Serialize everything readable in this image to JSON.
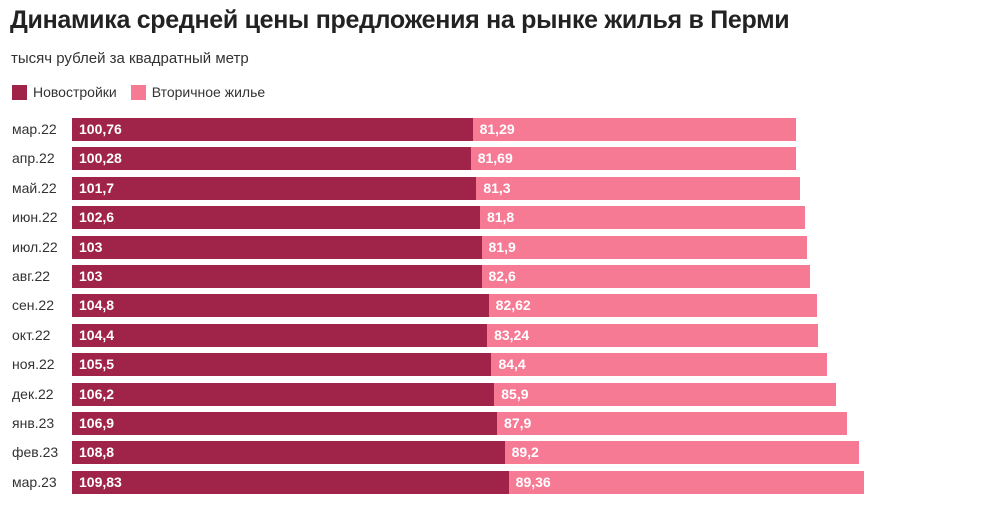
{
  "chart_data": {
    "type": "bar",
    "orientation": "horizontal",
    "stacked": true,
    "title": "Динамика средней цены предложения на рынке жилья в Перми",
    "subtitle": "тысяч рублей за квадратный метр",
    "legend_position": "top-left",
    "grid": false,
    "categories": [
      "мар.22",
      "апр.22",
      "май.22",
      "июн.22",
      "июл.22",
      "авг.22",
      "сен.22",
      "окт.22",
      "ноя.22",
      "дек.22",
      "янв.23",
      "фев.23",
      "мар.23"
    ],
    "series": [
      {
        "name": "Новостройки",
        "color": "#A0244A",
        "values": [
          100.76,
          100.28,
          101.7,
          102.6,
          103,
          103,
          104.8,
          104.4,
          105.5,
          106.2,
          106.9,
          108.8,
          109.83
        ],
        "labels": [
          "100,76",
          "100,28",
          "101,7",
          "102,6",
          "103",
          "103",
          "104,8",
          "104,4",
          "105,5",
          "106,2",
          "106,9",
          "108,8",
          "109,83"
        ]
      },
      {
        "name": "Вторичное жилье",
        "color": "#F77A95",
        "values": [
          81.29,
          81.69,
          81.3,
          81.8,
          81.9,
          82.6,
          82.62,
          83.24,
          84.4,
          85.9,
          87.9,
          89.2,
          89.36
        ],
        "labels": [
          "81,29",
          "81,69",
          "81,3",
          "81,8",
          "81,9",
          "82,6",
          "82,62",
          "83,24",
          "84,4",
          "85,9",
          "87,9",
          "89,2",
          "89,36"
        ]
      }
    ]
  }
}
